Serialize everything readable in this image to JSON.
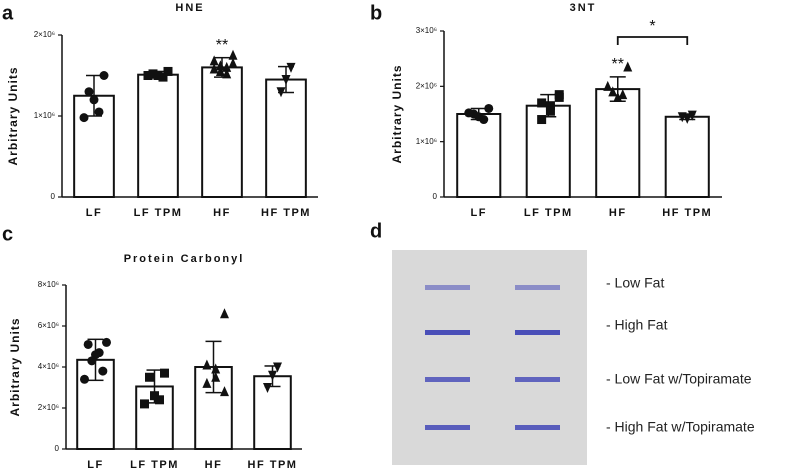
{
  "chart_data": [
    {
      "type": "bar",
      "panel": "a",
      "title": "HNE",
      "y_label": "Arbitrary Units",
      "categories": [
        "LF",
        "LF TPM",
        "HF",
        "HF TPM"
      ],
      "markers": [
        "circle",
        "square",
        "triangle",
        "triangle-down"
      ],
      "values": [
        1250000,
        1510000,
        1600000,
        1450000
      ],
      "errors": [
        250000,
        40000,
        120000,
        160000
      ],
      "points": [
        [
          1500000,
          1300000,
          1200000,
          1050000,
          980000
        ],
        [
          1550000,
          1520000,
          1500000,
          1480000,
          1500000
        ],
        [
          1750000,
          1680000,
          1600000,
          1550000,
          1620000,
          1520000,
          1580000,
          1650000
        ],
        [
          1600000,
          1450000,
          1300000
        ]
      ],
      "significance": [
        null,
        null,
        "**",
        null
      ],
      "ylim": [
        0,
        2000000
      ],
      "yticks": [
        0,
        {
          "value": 1000000,
          "label": "1×10⁶"
        },
        {
          "value": 2000000,
          "label": "2×10⁶"
        }
      ]
    },
    {
      "type": "bar",
      "panel": "b",
      "title": "3NT",
      "y_label": "Arbitrary Units",
      "categories": [
        "LF",
        "LF TPM",
        "HF",
        "HF TPM"
      ],
      "markers": [
        "circle",
        "square",
        "triangle",
        "triangle-down"
      ],
      "values": [
        1500000,
        1650000,
        1950000,
        1450000
      ],
      "errors": [
        100000,
        200000,
        220000,
        50000
      ],
      "points": [
        [
          1600000,
          1500000,
          1450000,
          1400000,
          1520000
        ],
        [
          1850000,
          1700000,
          1650000,
          1550000,
          1400000,
          1800000
        ],
        [
          2350000,
          1900000,
          1800000,
          1850000,
          2000000
        ],
        [
          1480000,
          1420000,
          1450000
        ]
      ],
      "significance": [
        null,
        null,
        "**",
        null
      ],
      "bracket_label": "*",
      "ylim": [
        0,
        3000000
      ],
      "yticks": [
        0,
        {
          "value": 1000000,
          "label": "1×10⁶"
        },
        {
          "value": 2000000,
          "label": "2×10⁶"
        },
        {
          "value": 3000000,
          "label": "3×10⁶"
        }
      ]
    },
    {
      "type": "bar",
      "panel": "c",
      "title": "Protein Carbonyl",
      "y_label": "Arbitrary Units",
      "categories": [
        "LF",
        "LF TPM",
        "HF",
        "HF TPM"
      ],
      "markers": [
        "circle",
        "square",
        "triangle",
        "triangle-down"
      ],
      "values": [
        4350000,
        3050000,
        4000000,
        3550000
      ],
      "errors": [
        1000000,
        800000,
        1250000,
        500000
      ],
      "points": [
        [
          5200000,
          5100000,
          4700000,
          4600000,
          4300000,
          3800000,
          3400000
        ],
        [
          3700000,
          3500000,
          2600000,
          2400000,
          2200000
        ],
        [
          6600000,
          4100000,
          3900000,
          3500000,
          3200000,
          2800000
        ],
        [
          4000000,
          3600000,
          3000000
        ]
      ],
      "significance": [
        null,
        null,
        null,
        null
      ],
      "ylim": [
        0,
        8000000
      ],
      "yticks": [
        0,
        {
          "value": 2000000,
          "label": "2×10⁶"
        },
        {
          "value": 4000000,
          "label": "4×10⁶"
        },
        {
          "value": 6000000,
          "label": "6×10⁶"
        },
        {
          "value": 8000000,
          "label": "8×10⁶"
        }
      ]
    }
  ],
  "blot": {
    "panel": "d",
    "labels": [
      "- Low Fat",
      "- High Fat",
      "- Low Fat w/Topiramate",
      "- High Fat w/Topiramate"
    ]
  }
}
